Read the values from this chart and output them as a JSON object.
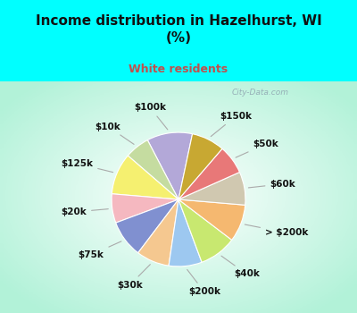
{
  "title": "Income distribution in Hazelhurst, WI\n(%)",
  "subtitle": "White residents",
  "title_color": "#111111",
  "subtitle_color": "#c0504d",
  "bg_cyan": "#00ffff",
  "watermark": "City-Data.com",
  "labels": [
    "$100k",
    "$10k",
    "$125k",
    "$20k",
    "$75k",
    "$30k",
    "$200k",
    "$40k",
    "> $200k",
    "$60k",
    "$50k",
    "$150k"
  ],
  "values": [
    11,
    6,
    10,
    7,
    9,
    8,
    8,
    9,
    9,
    8,
    7,
    8
  ],
  "colors": [
    "#b3a8d8",
    "#c5dca0",
    "#f5f070",
    "#f5b8c0",
    "#8090d0",
    "#f5c890",
    "#9dc8f0",
    "#c8e870",
    "#f5b870",
    "#d0c8b0",
    "#e87878",
    "#c8a832"
  ],
  "startangle": 78,
  "label_fontsize": 7.5
}
